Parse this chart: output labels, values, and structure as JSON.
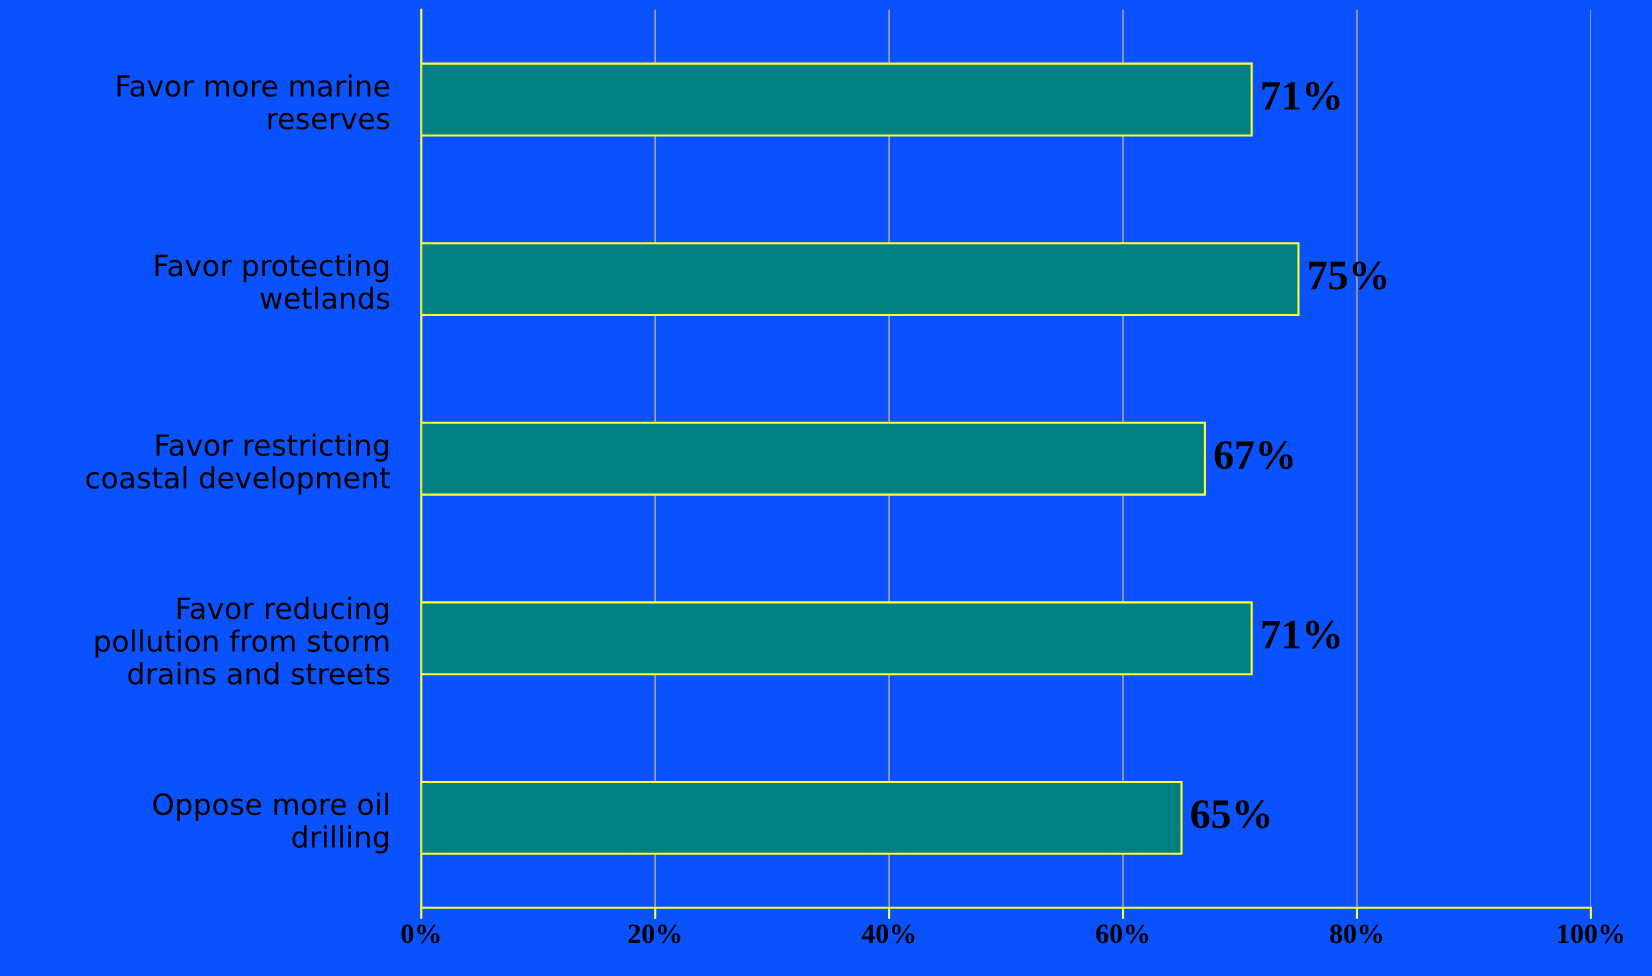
{
  "chart_data": {
    "type": "bar",
    "orientation": "horizontal",
    "categories": [
      "Favor more marine\nreserves",
      "Favor protecting\nwetlands",
      "Favor restricting\ncoastal development",
      "Favor reducing\npollution from storm\ndrains and streets",
      "Oppose more oil\ndrilling"
    ],
    "values": [
      71,
      75,
      67,
      71,
      65
    ],
    "color": "#008080",
    "value_labels": [
      "71%",
      "75%",
      "67%",
      "71%",
      "65%"
    ],
    "xlim": [
      0,
      100
    ],
    "xticks": [
      {
        "value": 0,
        "label": "0%"
      },
      {
        "value": 20,
        "label": "20%"
      },
      {
        "value": 40,
        "label": "40%"
      },
      {
        "value": 60,
        "label": "60%"
      },
      {
        "value": 80,
        "label": "80%"
      },
      {
        "value": 100,
        "label": "100%"
      }
    ],
    "grid": "x",
    "legend": false
  }
}
